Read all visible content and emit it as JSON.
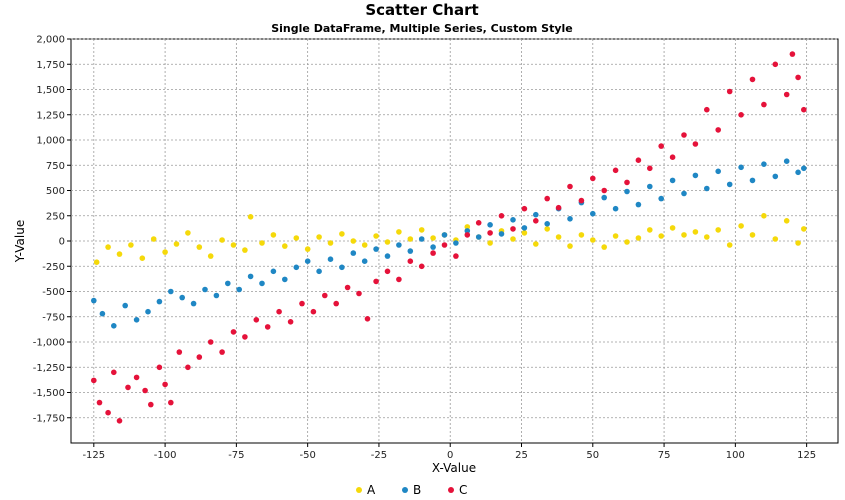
{
  "chart_data": {
    "type": "scatter",
    "title": "Scatter Chart",
    "subtitle": "Single DataFrame, Multiple Series, Custom Style",
    "xlabel": "X-Value",
    "ylabel": "Y-Value",
    "xlim": [
      -133,
      136
    ],
    "ylim": [
      -2000,
      2000
    ],
    "xticks": [
      -125,
      -100,
      -75,
      -50,
      -25,
      0,
      25,
      50,
      75,
      100,
      125
    ],
    "xtick_labels": [
      "-125",
      "-100",
      "-75",
      "-50",
      "-25",
      "0",
      "25",
      "50",
      "75",
      "100",
      "125"
    ],
    "yticks": [
      2000,
      1750,
      1500,
      1250,
      1000,
      750,
      500,
      250,
      0,
      -250,
      -500,
      -750,
      -1000,
      -1250,
      -1500,
      -1750
    ],
    "ytick_labels": [
      "2,000",
      "1,750",
      "1,500",
      "1,250",
      "1,000",
      "750",
      "500",
      "250",
      "0",
      "-250",
      "-500",
      "-750",
      "-1,000",
      "-1,250",
      "-1,500",
      "-1,750"
    ],
    "grid": true,
    "legend_position": "bottom-center",
    "series": [
      {
        "name": "A",
        "color": "#f5d90a",
        "points": [
          [
            -124,
            -210
          ],
          [
            -120,
            -60
          ],
          [
            -116,
            -130
          ],
          [
            -112,
            -40
          ],
          [
            -108,
            -170
          ],
          [
            -104,
            20
          ],
          [
            -100,
            -110
          ],
          [
            -96,
            -30
          ],
          [
            -92,
            80
          ],
          [
            -88,
            -60
          ],
          [
            -84,
            -150
          ],
          [
            -80,
            10
          ],
          [
            -76,
            -40
          ],
          [
            -72,
            -90
          ],
          [
            -70,
            240
          ],
          [
            -66,
            -20
          ],
          [
            -62,
            60
          ],
          [
            -58,
            -50
          ],
          [
            -54,
            30
          ],
          [
            -50,
            -80
          ],
          [
            -46,
            40
          ],
          [
            -42,
            -20
          ],
          [
            -38,
            70
          ],
          [
            -34,
            0
          ],
          [
            -30,
            -40
          ],
          [
            -26,
            50
          ],
          [
            -22,
            -10
          ],
          [
            -18,
            90
          ],
          [
            -14,
            20
          ],
          [
            -10,
            110
          ],
          [
            -6,
            30
          ],
          [
            -2,
            60
          ],
          [
            2,
            10
          ],
          [
            6,
            140
          ],
          [
            10,
            40
          ],
          [
            14,
            -20
          ],
          [
            18,
            100
          ],
          [
            22,
            20
          ],
          [
            26,
            80
          ],
          [
            30,
            -30
          ],
          [
            34,
            120
          ],
          [
            38,
            40
          ],
          [
            42,
            -50
          ],
          [
            46,
            60
          ],
          [
            50,
            10
          ],
          [
            54,
            -60
          ],
          [
            58,
            50
          ],
          [
            62,
            -10
          ],
          [
            66,
            30
          ],
          [
            70,
            110
          ],
          [
            74,
            50
          ],
          [
            78,
            130
          ],
          [
            82,
            60
          ],
          [
            86,
            90
          ],
          [
            90,
            40
          ],
          [
            94,
            110
          ],
          [
            98,
            -40
          ],
          [
            102,
            150
          ],
          [
            106,
            60
          ],
          [
            110,
            250
          ],
          [
            114,
            20
          ],
          [
            118,
            200
          ],
          [
            122,
            -20
          ],
          [
            124,
            120
          ]
        ]
      },
      {
        "name": "B",
        "color": "#1f87c4",
        "points": [
          [
            -125,
            -590
          ],
          [
            -122,
            -720
          ],
          [
            -118,
            -840
          ],
          [
            -114,
            -640
          ],
          [
            -110,
            -780
          ],
          [
            -106,
            -700
          ],
          [
            -102,
            -600
          ],
          [
            -98,
            -500
          ],
          [
            -94,
            -560
          ],
          [
            -90,
            -620
          ],
          [
            -86,
            -480
          ],
          [
            -82,
            -540
          ],
          [
            -78,
            -420
          ],
          [
            -74,
            -480
          ],
          [
            -70,
            -350
          ],
          [
            -66,
            -420
          ],
          [
            -62,
            -300
          ],
          [
            -58,
            -380
          ],
          [
            -54,
            -260
          ],
          [
            -50,
            -200
          ],
          [
            -46,
            -300
          ],
          [
            -42,
            -180
          ],
          [
            -38,
            -260
          ],
          [
            -34,
            -120
          ],
          [
            -30,
            -200
          ],
          [
            -26,
            -80
          ],
          [
            -22,
            -150
          ],
          [
            -18,
            -40
          ],
          [
            -14,
            -100
          ],
          [
            -10,
            20
          ],
          [
            -6,
            -60
          ],
          [
            -2,
            60
          ],
          [
            2,
            -20
          ],
          [
            6,
            100
          ],
          [
            10,
            40
          ],
          [
            14,
            160
          ],
          [
            18,
            70
          ],
          [
            22,
            210
          ],
          [
            26,
            130
          ],
          [
            30,
            260
          ],
          [
            34,
            170
          ],
          [
            38,
            320
          ],
          [
            42,
            220
          ],
          [
            46,
            380
          ],
          [
            50,
            270
          ],
          [
            54,
            430
          ],
          [
            58,
            320
          ],
          [
            62,
            490
          ],
          [
            66,
            360
          ],
          [
            70,
            540
          ],
          [
            74,
            420
          ],
          [
            78,
            600
          ],
          [
            82,
            470
          ],
          [
            86,
            650
          ],
          [
            90,
            520
          ],
          [
            94,
            690
          ],
          [
            98,
            560
          ],
          [
            102,
            730
          ],
          [
            106,
            600
          ],
          [
            110,
            760
          ],
          [
            114,
            640
          ],
          [
            118,
            790
          ],
          [
            122,
            680
          ],
          [
            124,
            720
          ]
        ]
      },
      {
        "name": "C",
        "color": "#e5123a",
        "points": [
          [
            -125,
            -1380
          ],
          [
            -123,
            -1600
          ],
          [
            -120,
            -1700
          ],
          [
            -118,
            -1300
          ],
          [
            -116,
            -1780
          ],
          [
            -113,
            -1450
          ],
          [
            -110,
            -1350
          ],
          [
            -107,
            -1480
          ],
          [
            -105,
            -1620
          ],
          [
            -102,
            -1250
          ],
          [
            -100,
            -1420
          ],
          [
            -98,
            -1600
          ],
          [
            -95,
            -1100
          ],
          [
            -92,
            -1250
          ],
          [
            -88,
            -1150
          ],
          [
            -84,
            -1000
          ],
          [
            -80,
            -1100
          ],
          [
            -76,
            -900
          ],
          [
            -72,
            -950
          ],
          [
            -68,
            -780
          ],
          [
            -64,
            -850
          ],
          [
            -60,
            -700
          ],
          [
            -56,
            -800
          ],
          [
            -52,
            -620
          ],
          [
            -48,
            -700
          ],
          [
            -44,
            -540
          ],
          [
            -40,
            -620
          ],
          [
            -36,
            -460
          ],
          [
            -32,
            -520
          ],
          [
            -29,
            -770
          ],
          [
            -26,
            -400
          ],
          [
            -22,
            -300
          ],
          [
            -18,
            -380
          ],
          [
            -14,
            -200
          ],
          [
            -10,
            -250
          ],
          [
            -6,
            -120
          ],
          [
            -2,
            -40
          ],
          [
            2,
            -150
          ],
          [
            6,
            60
          ],
          [
            10,
            180
          ],
          [
            14,
            80
          ],
          [
            18,
            250
          ],
          [
            22,
            120
          ],
          [
            26,
            320
          ],
          [
            30,
            200
          ],
          [
            34,
            420
          ],
          [
            38,
            330
          ],
          [
            42,
            540
          ],
          [
            46,
            400
          ],
          [
            50,
            620
          ],
          [
            54,
            500
          ],
          [
            58,
            700
          ],
          [
            62,
            580
          ],
          [
            66,
            800
          ],
          [
            70,
            720
          ],
          [
            74,
            940
          ],
          [
            78,
            830
          ],
          [
            82,
            1050
          ],
          [
            86,
            960
          ],
          [
            90,
            1300
          ],
          [
            94,
            1100
          ],
          [
            98,
            1480
          ],
          [
            102,
            1250
          ],
          [
            106,
            1600
          ],
          [
            110,
            1350
          ],
          [
            114,
            1750
          ],
          [
            118,
            1450
          ],
          [
            120,
            1850
          ],
          [
            122,
            1620
          ],
          [
            124,
            1300
          ]
        ]
      }
    ]
  }
}
